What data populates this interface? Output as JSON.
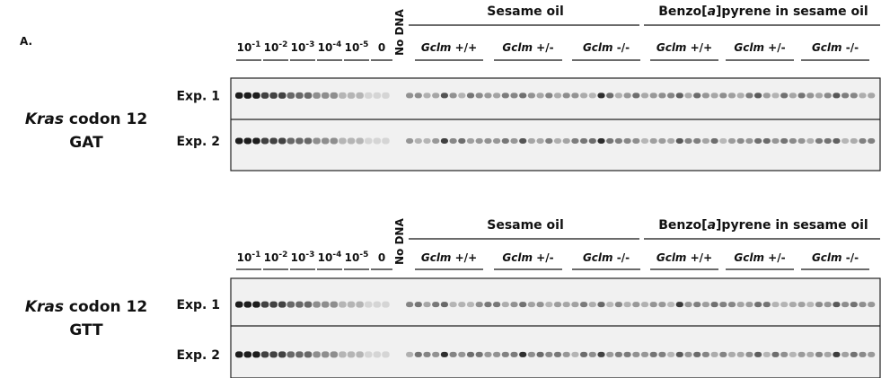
{
  "figure_label": "A.",
  "panels": [
    {
      "gene": {
        "name": "Kras",
        "rest": " codon 12",
        "mutation": "GAT"
      },
      "dilutions": [
        {
          "base": "10",
          "exp": "-1"
        },
        {
          "base": "10",
          "exp": "-2"
        },
        {
          "base": "10",
          "exp": "-3"
        },
        {
          "base": "10",
          "exp": "-4"
        },
        {
          "base": "10",
          "exp": "-5"
        }
      ],
      "zero": "0",
      "no_dna": "No DNA",
      "groups": [
        {
          "title": [
            "Sesame oil"
          ],
          "genotypes": [
            {
              "gene": "Gclm",
              "geno": " +/+"
            },
            {
              "gene": "Gclm",
              "geno": " +/-"
            },
            {
              "gene": "Gclm",
              "geno": " -/-"
            }
          ]
        },
        {
          "title": [
            "Benzo[",
            "a",
            "]pyrene in sesame oil"
          ],
          "genotypes": [
            {
              "gene": "Gclm",
              "geno": " +/+"
            },
            {
              "gene": "Gclm",
              "geno": " +/-"
            },
            {
              "gene": "Gclm",
              "geno": " -/-"
            }
          ]
        }
      ],
      "rows": [
        "Exp. 1",
        "Exp. 2"
      ]
    },
    {
      "gene": {
        "name": "Kras",
        "rest": " codon 12",
        "mutation": "GTT"
      },
      "dilutions": [
        {
          "base": "10",
          "exp": "-1"
        },
        {
          "base": "10",
          "exp": "-2"
        },
        {
          "base": "10",
          "exp": "-3"
        },
        {
          "base": "10",
          "exp": "-4"
        },
        {
          "base": "10",
          "exp": "-5"
        }
      ],
      "zero": "0",
      "no_dna": "No DNA",
      "groups": [
        {
          "title": [
            "Sesame oil"
          ],
          "genotypes": [
            {
              "gene": "Gclm",
              "geno": " +/+"
            },
            {
              "gene": "Gclm",
              "geno": " +/-"
            },
            {
              "gene": "Gclm",
              "geno": " -/-"
            }
          ]
        },
        {
          "title": [
            "Benzo[",
            "a",
            "]pyrene in sesame oil"
          ],
          "genotypes": [
            {
              "gene": "Gclm",
              "geno": " +/+"
            },
            {
              "gene": "Gclm",
              "geno": " +/-"
            },
            {
              "gene": "Gclm",
              "geno": " -/-"
            }
          ]
        }
      ],
      "rows": [
        "Exp. 1",
        "Exp. 2"
      ]
    }
  ]
}
